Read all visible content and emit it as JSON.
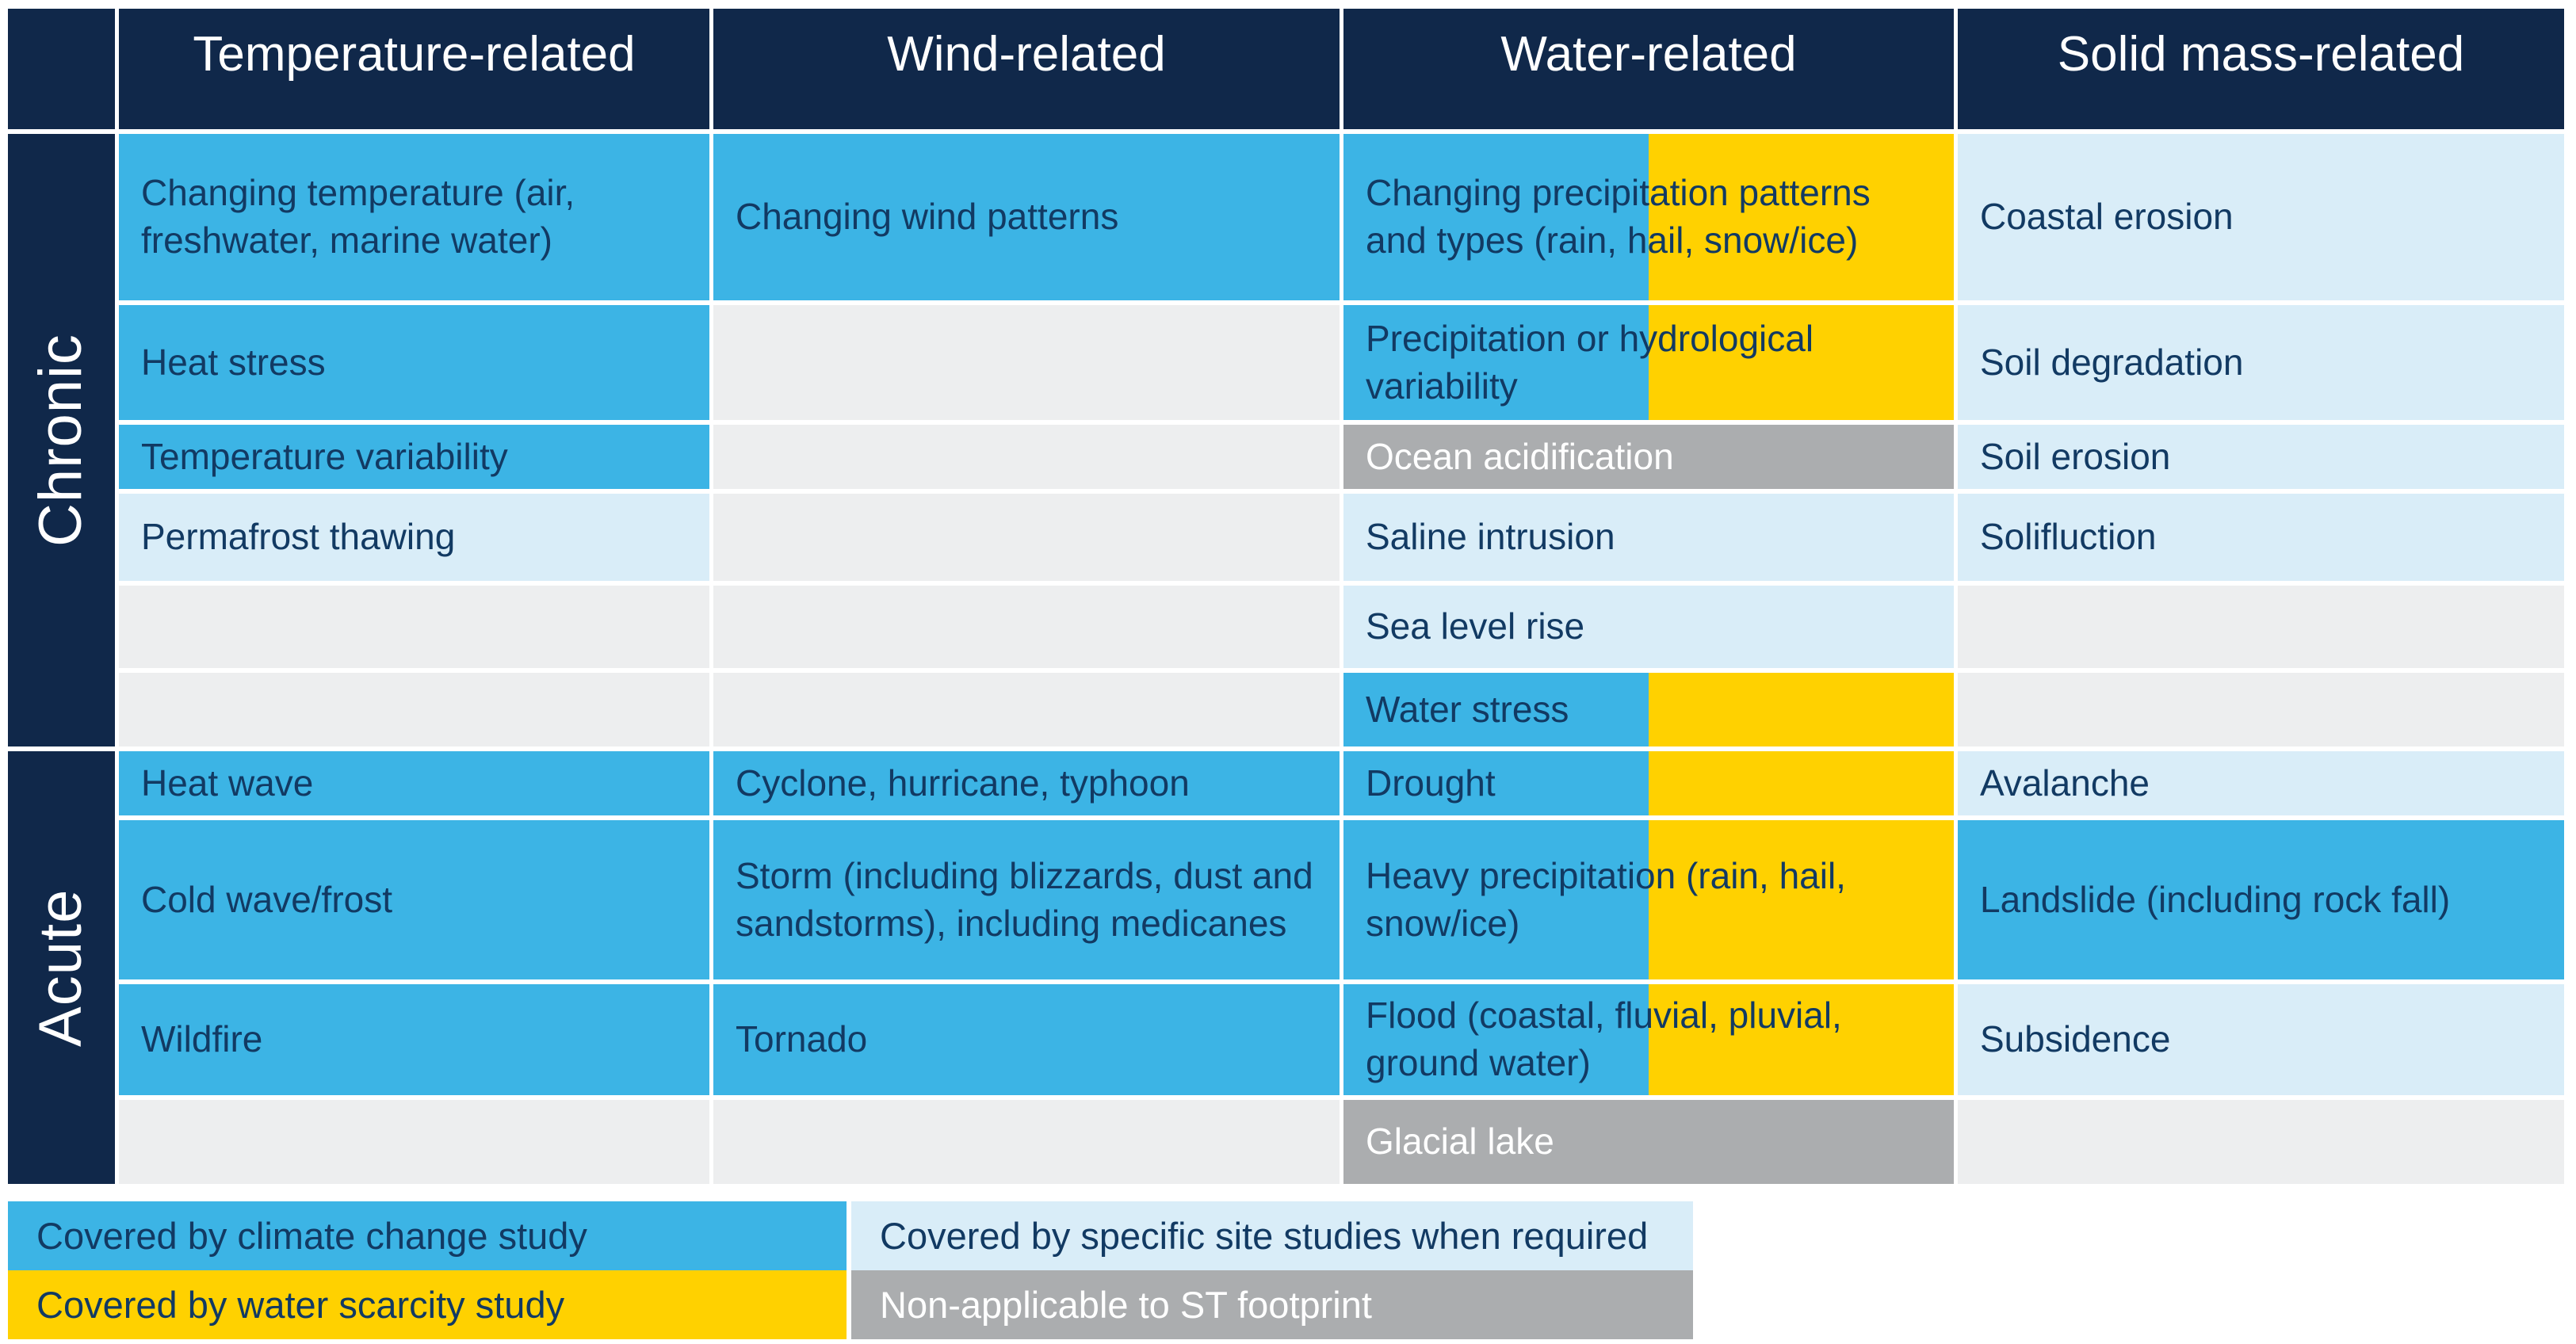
{
  "header": {
    "columns": [
      "Temperature-related",
      "Wind-related",
      "Water-related",
      "Solid mass-related"
    ]
  },
  "row_groups": [
    {
      "label": "Chronic",
      "rows": [
        {
          "cells": [
            {
              "text": "Changing temperature (air, freshwater, marine water)",
              "coverage": "climate change study"
            },
            {
              "text": "Changing wind patterns",
              "coverage": "climate change study"
            },
            {
              "text": "Changing precipitation patterns and types (rain, hail, snow/ice)",
              "coverage": "climate change study + water scarcity study"
            },
            {
              "text": "Coastal erosion",
              "coverage": "specific site studies when required"
            }
          ]
        },
        {
          "cells": [
            {
              "text": "Heat stress",
              "coverage": "climate change study"
            },
            {
              "text": "",
              "coverage": "none"
            },
            {
              "text": "Precipitation or hydrological variability",
              "coverage": "climate change study + water scarcity study"
            },
            {
              "text": "Soil degradation",
              "coverage": "specific site studies when required"
            }
          ]
        },
        {
          "cells": [
            {
              "text": "Temperature variability",
              "coverage": "climate change study"
            },
            {
              "text": "",
              "coverage": "none"
            },
            {
              "text": "Ocean acidification",
              "coverage": "non-applicable to ST footprint"
            },
            {
              "text": "Soil erosion",
              "coverage": "specific site studies when required"
            }
          ]
        },
        {
          "cells": [
            {
              "text": "Permafrost thawing",
              "coverage": "specific site studies when required"
            },
            {
              "text": "",
              "coverage": "none"
            },
            {
              "text": "Saline intrusion",
              "coverage": "specific site studies when required"
            },
            {
              "text": "Solifluction",
              "coverage": "specific site studies when required"
            }
          ]
        },
        {
          "cells": [
            {
              "text": "",
              "coverage": "none"
            },
            {
              "text": "",
              "coverage": "none"
            },
            {
              "text": "Sea level rise",
              "coverage": "specific site studies when required"
            },
            {
              "text": "",
              "coverage": "none"
            }
          ]
        },
        {
          "cells": [
            {
              "text": "",
              "coverage": "none"
            },
            {
              "text": "",
              "coverage": "none"
            },
            {
              "text": "Water stress",
              "coverage": "climate change study + water scarcity study"
            },
            {
              "text": "",
              "coverage": "none"
            }
          ]
        }
      ]
    },
    {
      "label": "Acute",
      "rows": [
        {
          "cells": [
            {
              "text": "Heat wave",
              "coverage": "climate change study"
            },
            {
              "text": "Cyclone, hurricane, typhoon",
              "coverage": "climate change study"
            },
            {
              "text": "Drought",
              "coverage": "climate change study + water scarcity study"
            },
            {
              "text": "Avalanche",
              "coverage": "specific site studies when required"
            }
          ]
        },
        {
          "cells": [
            {
              "text": "Cold wave/frost",
              "coverage": "climate change study"
            },
            {
              "text": "Storm (including blizzards, dust and sandstorms), including medicanes",
              "coverage": "climate change study"
            },
            {
              "text": "Heavy precipitation (rain, hail, snow/ice)",
              "coverage": "climate change study + water scarcity study"
            },
            {
              "text": "Landslide (including rock fall)",
              "coverage": "climate change study"
            }
          ]
        },
        {
          "cells": [
            {
              "text": "Wildfire",
              "coverage": "climate change study"
            },
            {
              "text": "Tornado",
              "coverage": "climate change study"
            },
            {
              "text": "Flood (coastal, fluvial, pluvial, ground water)",
              "coverage": "climate change study + water scarcity study"
            },
            {
              "text": "Subsidence",
              "coverage": "specific site studies when required"
            }
          ]
        },
        {
          "cells": [
            {
              "text": "",
              "coverage": "none"
            },
            {
              "text": "",
              "coverage": "none"
            },
            {
              "text": "Glacial lake",
              "coverage": "non-applicable to ST footprint"
            },
            {
              "text": "",
              "coverage": "none"
            }
          ]
        }
      ]
    }
  ],
  "legend": {
    "items": [
      {
        "label": "Covered by climate change study",
        "color": "#3CB4E5"
      },
      {
        "label": "Covered by specific site studies when required",
        "color": "#D9EDF8"
      },
      {
        "label": "Covered by water scarcity study",
        "color": "#FFD100"
      },
      {
        "label": "Non-applicable to ST footprint",
        "color": "#ABADAF"
      }
    ]
  },
  "colors": {
    "header_navy": "#10284A",
    "climate_blue": "#3CB4E5",
    "site_light_blue": "#D9EDF8",
    "water_yellow": "#FFD100",
    "na_gray": "#ABADAF",
    "empty_gray": "#EDEEEF",
    "cell_text": "#123A63"
  }
}
